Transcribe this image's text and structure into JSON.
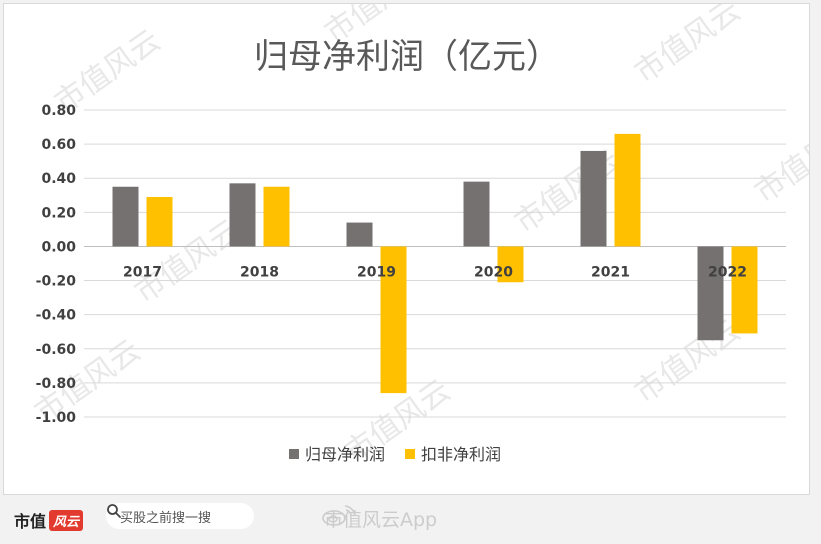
{
  "chart_data": {
    "type": "bar",
    "title": "归母净利润（亿元）",
    "categories": [
      "2017",
      "2018",
      "2019",
      "2020",
      "2021",
      "2022"
    ],
    "series": [
      {
        "name": "归母净利润",
        "color": "#767171",
        "values": [
          0.35,
          0.37,
          0.14,
          0.38,
          0.56,
          -0.55
        ]
      },
      {
        "name": "扣非净利润",
        "color": "#ffc000",
        "values": [
          0.29,
          0.35,
          -0.86,
          -0.21,
          0.66,
          -0.51
        ]
      }
    ],
    "ylim": [
      -1.0,
      0.8
    ],
    "yticks": [
      "0.80",
      "0.60",
      "0.40",
      "0.20",
      "0.00",
      "-0.20",
      "-0.40",
      "-0.60",
      "-0.80",
      "-1.00"
    ],
    "grid": true,
    "legend_position": "bottom"
  },
  "watermark": "市值风云",
  "footer": {
    "brand": "市值",
    "brand_badge": "风云",
    "search_placeholder": "买股之前搜一搜",
    "app_credit": "市值风云App",
    "search_icon": "search-icon",
    "app_icon": "weibo-icon"
  }
}
